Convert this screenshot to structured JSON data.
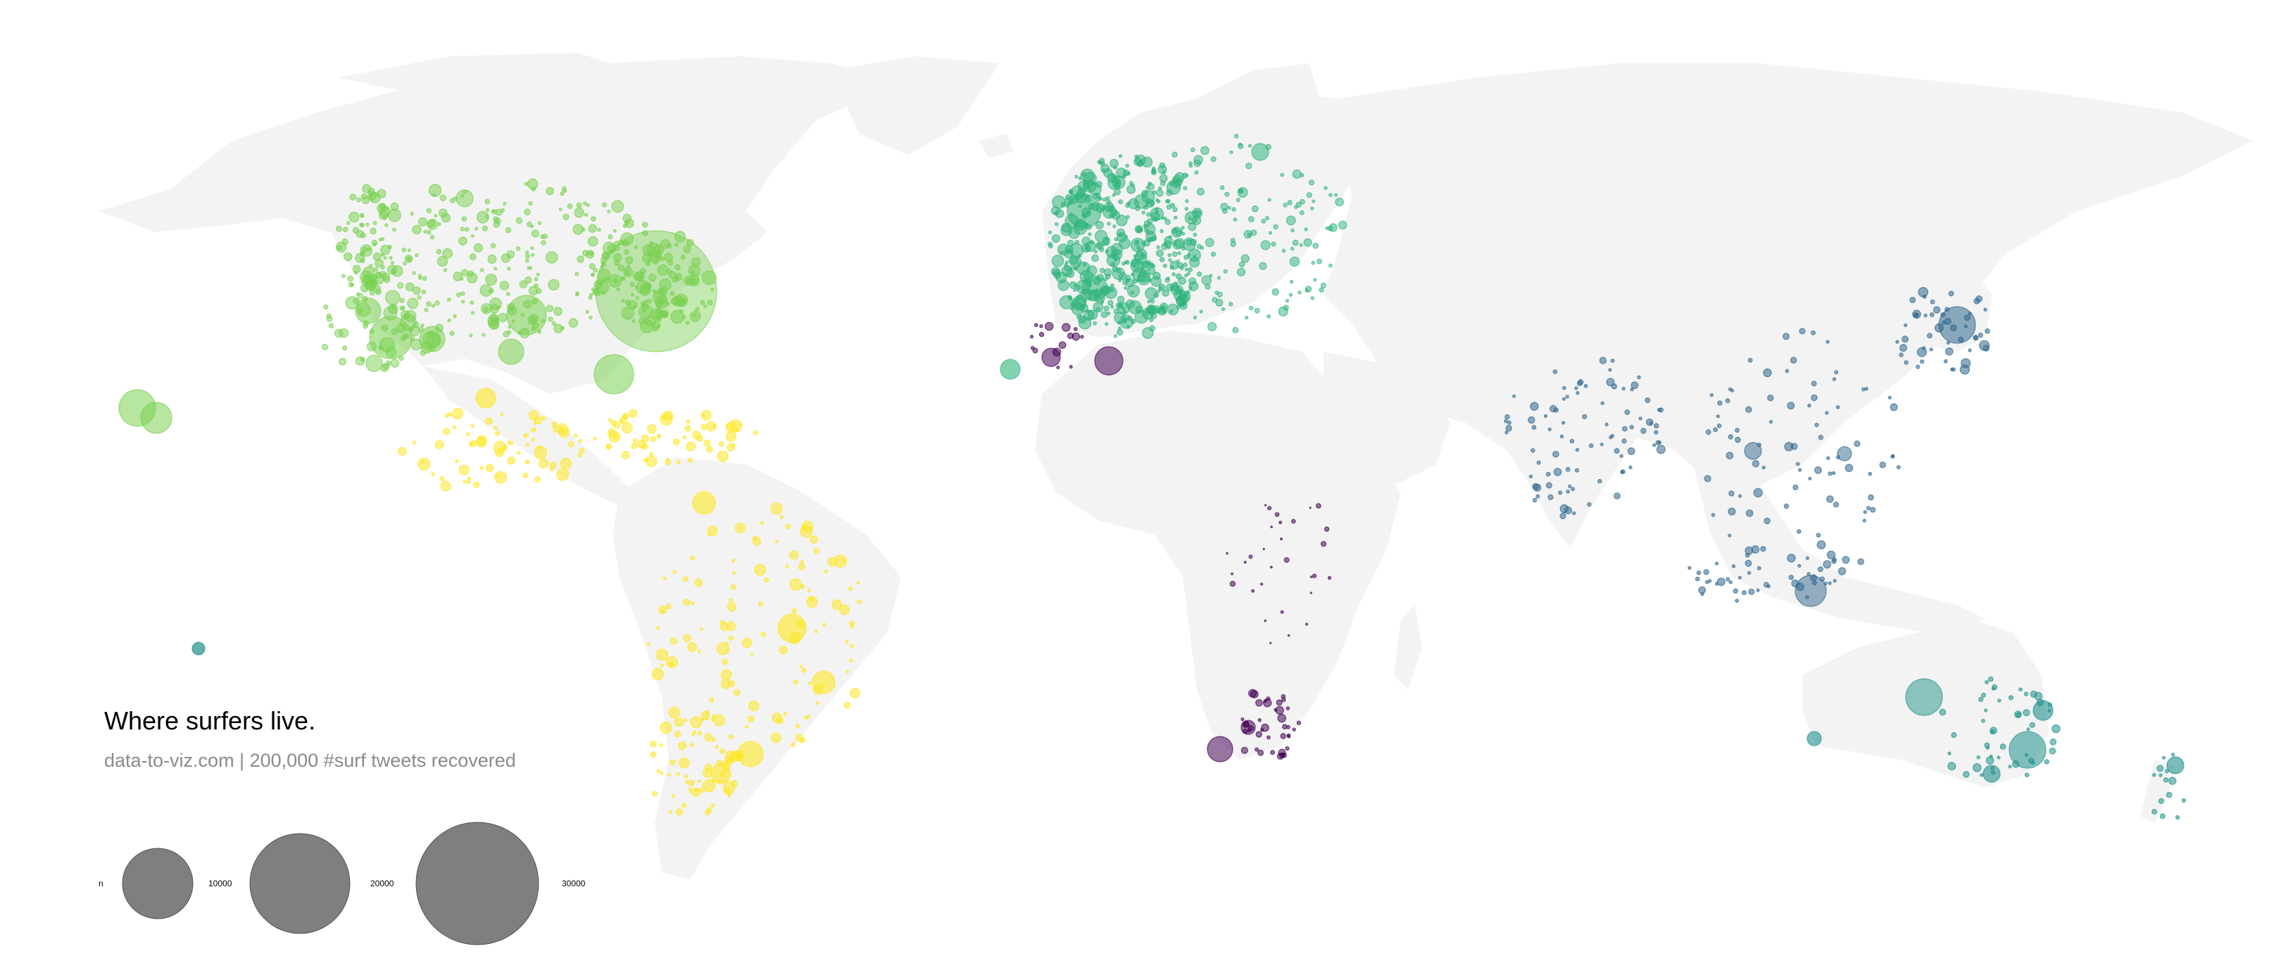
{
  "title": "Where surfers live.",
  "subtitle": "data-to-viz.com | 200,000 #surf tweets recovered",
  "legend": {
    "title": "n",
    "items": [
      {
        "label": "10000",
        "value": 10000
      },
      {
        "label": "20000",
        "value": 20000
      },
      {
        "label": "30000",
        "value": 30000
      }
    ],
    "color": "#7f7f7f"
  },
  "colors": {
    "land": "#f3f3f3",
    "north_america": "#7ad151",
    "latin_america": "#fde725",
    "europe": "#2fb47c",
    "africa": "#440154",
    "asia": "#31688e",
    "oceania": "#21918c"
  }
}
